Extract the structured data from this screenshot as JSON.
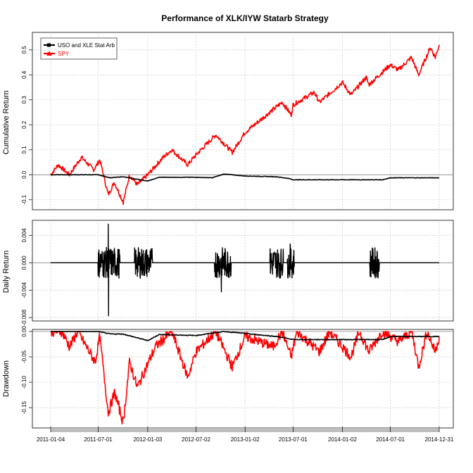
{
  "title": "Performance of XLK/IYW Statarb Strategy",
  "colors": {
    "strategy": "#000000",
    "benchmark": "#ff0000",
    "grid": "#c8c8c8",
    "datebar": "#bdbdbd"
  },
  "chart_data": [
    {
      "type": "line",
      "panel": "cumulative",
      "ylabel": "Cumulative Return",
      "yticks": [
        -0.1,
        0.0,
        0.1,
        0.2,
        0.3,
        0.4,
        0.5
      ],
      "ytick_labels": [
        "-0.1",
        "0.0",
        "0.1",
        "0.2",
        "0.3",
        "0.4",
        "0.5"
      ],
      "ylim": [
        -0.14,
        0.57
      ],
      "grid": true,
      "legend": {
        "placement": "top-left",
        "entries": [
          "USO and XLE Stat Arb",
          "SPY"
        ]
      },
      "series": [
        {
          "name": "USO and XLE Stat Arb",
          "color": "#000000",
          "x": [
            "2011-01-04",
            "2011-07-01",
            "2011-07-20",
            "2011-08-15",
            "2011-10-01",
            "2012-01-03",
            "2012-02-15",
            "2012-07-02",
            "2012-09-01",
            "2012-10-15",
            "2013-01-02",
            "2013-05-01",
            "2013-06-15",
            "2013-07-01",
            "2014-05-01",
            "2014-06-01",
            "2014-07-01",
            "2014-12-31"
          ],
          "y": [
            0.0,
            0.0,
            -0.005,
            -0.012,
            -0.008,
            -0.025,
            -0.01,
            -0.01,
            -0.012,
            0.003,
            -0.005,
            -0.008,
            -0.015,
            -0.02,
            -0.02,
            -0.02,
            -0.012,
            -0.012
          ]
        },
        {
          "name": "SPY",
          "color": "#ff0000",
          "x": [
            "2011-01-04",
            "2011-02-01",
            "2011-03-15",
            "2011-04-29",
            "2011-06-15",
            "2011-07-07",
            "2011-08-08",
            "2011-08-31",
            "2011-10-03",
            "2011-10-27",
            "2011-11-25",
            "2012-01-03",
            "2012-03-01",
            "2012-04-02",
            "2012-06-01",
            "2012-07-02",
            "2012-09-14",
            "2012-11-15",
            "2013-01-02",
            "2013-03-01",
            "2013-05-21",
            "2013-06-24",
            "2013-07-01",
            "2013-09-18",
            "2013-10-08",
            "2014-01-02",
            "2014-02-03",
            "2014-04-01",
            "2014-04-11",
            "2014-06-30",
            "2014-07-31",
            "2014-09-18",
            "2014-10-15",
            "2014-11-28",
            "2014-12-16",
            "2014-12-31"
          ],
          "y": [
            0.0,
            0.04,
            0.0,
            0.07,
            0.02,
            0.06,
            -0.08,
            -0.03,
            -0.11,
            0.0,
            -0.04,
            0.0,
            0.07,
            0.1,
            0.04,
            0.08,
            0.16,
            0.09,
            0.17,
            0.22,
            0.29,
            0.24,
            0.28,
            0.33,
            0.29,
            0.37,
            0.32,
            0.39,
            0.36,
            0.44,
            0.42,
            0.47,
            0.4,
            0.51,
            0.47,
            0.52
          ]
        }
      ]
    },
    {
      "type": "line",
      "panel": "daily",
      "ylabel": "Daily Return",
      "yticks": [
        -0.008,
        -0.004,
        0.0,
        0.004
      ],
      "ytick_labels": [
        "-0.008",
        "-0.004",
        "0.000",
        "0.004"
      ],
      "ylim": [
        -0.0085,
        0.0062
      ],
      "grid": true,
      "active_periods": [
        {
          "start": "2011-07-01",
          "end": "2011-09-20"
        },
        {
          "start": "2011-11-15",
          "end": "2012-01-20"
        },
        {
          "start": "2012-09-10",
          "end": "2012-11-10"
        },
        {
          "start": "2013-04-05",
          "end": "2013-05-25"
        },
        {
          "start": "2013-06-10",
          "end": "2013-07-05"
        },
        {
          "start": "2014-04-15",
          "end": "2014-05-20"
        }
      ],
      "extremes": [
        {
          "date": "2011-08-08",
          "value": 0.0057
        },
        {
          "date": "2011-08-09",
          "value": -0.0078
        },
        {
          "date": "2012-10-05",
          "value": -0.0043
        },
        {
          "date": "2013-06-20",
          "value": 0.0028
        }
      ]
    },
    {
      "type": "line",
      "panel": "drawdown",
      "ylabel": "Drawdown",
      "yticks": [
        -0.15,
        -0.1,
        -0.05,
        0.0
      ],
      "ytick_labels": [
        "-0.15",
        "-0.10",
        "-0.05",
        "0.00"
      ],
      "ylim": [
        -0.19,
        0.004
      ],
      "grid": true,
      "series": [
        {
          "name": "USO and XLE Stat Arb",
          "color": "#000000",
          "x": [
            "2011-01-04",
            "2011-07-01",
            "2011-08-15",
            "2011-10-01",
            "2012-01-03",
            "2012-02-15",
            "2012-07-02",
            "2012-10-15",
            "2013-01-02",
            "2013-05-01",
            "2013-07-01",
            "2014-06-01",
            "2014-07-01",
            "2014-12-31"
          ],
          "y": [
            0.0,
            0.0,
            -0.005,
            -0.005,
            -0.018,
            -0.006,
            -0.008,
            0.0,
            -0.004,
            -0.01,
            -0.016,
            -0.016,
            -0.01,
            -0.01
          ]
        },
        {
          "name": "SPY",
          "color": "#ff0000",
          "x": [
            "2011-01-04",
            "2011-02-15",
            "2011-03-16",
            "2011-04-15",
            "2011-06-20",
            "2011-07-07",
            "2011-08-08",
            "2011-09-01",
            "2011-10-03",
            "2011-10-27",
            "2011-11-25",
            "2012-02-01",
            "2012-04-02",
            "2012-06-01",
            "2012-07-02",
            "2012-09-14",
            "2012-11-15",
            "2013-01-02",
            "2013-04-18",
            "2013-05-21",
            "2013-06-24",
            "2013-07-15",
            "2013-10-08",
            "2013-11-15",
            "2014-02-03",
            "2014-03-07",
            "2014-04-11",
            "2014-06-01",
            "2014-08-01",
            "2014-09-19",
            "2014-10-15",
            "2014-11-15",
            "2014-12-16",
            "2014-12-31"
          ],
          "y": [
            0.0,
            0.0,
            -0.03,
            0.0,
            -0.06,
            -0.01,
            -0.16,
            -0.12,
            -0.18,
            -0.06,
            -0.11,
            -0.03,
            0.0,
            -0.09,
            -0.04,
            0.0,
            -0.07,
            -0.01,
            -0.03,
            0.0,
            -0.05,
            0.0,
            -0.04,
            0.0,
            -0.05,
            0.0,
            -0.04,
            0.0,
            -0.02,
            0.0,
            -0.07,
            0.0,
            -0.04,
            -0.01
          ]
        }
      ]
    }
  ],
  "x_axis": {
    "type": "date",
    "start": "2011-01-04",
    "end": "2014-12-31",
    "tick_labels": [
      "2011-01-04",
      "2011-07-01",
      "2012-01-03",
      "2012-07-02",
      "2013-01-02",
      "2013-07-01",
      "2014-01-02",
      "2014-07-01",
      "2014-12-31"
    ]
  }
}
